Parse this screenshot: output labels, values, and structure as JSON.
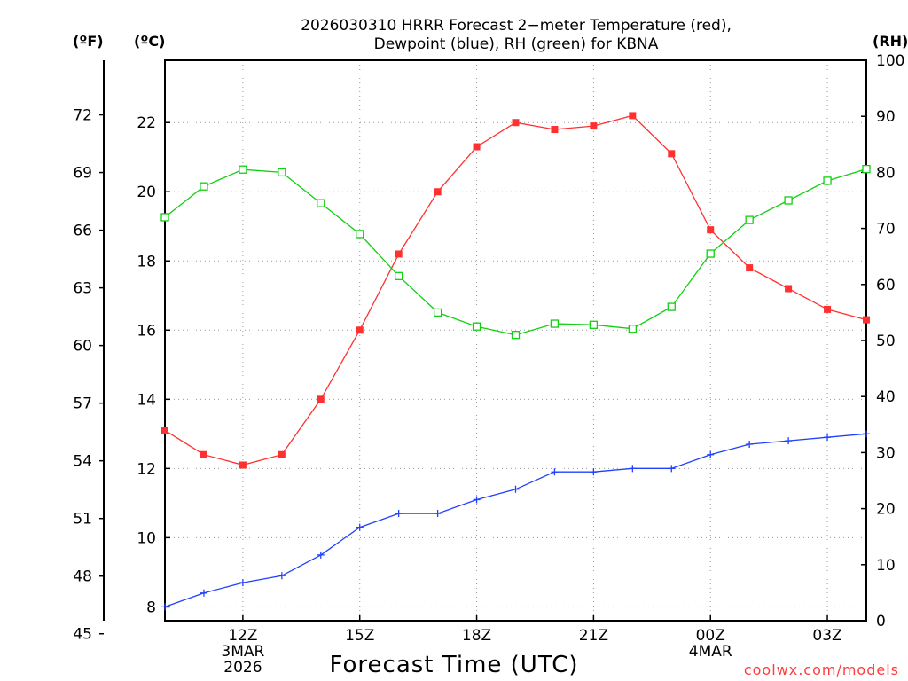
{
  "chart_data": {
    "type": "line",
    "title_line1": "2026030310 HRRR Forecast 2−meter Temperature (red),",
    "title_line2": "Dewpoint (blue), RH (green) for KBNA",
    "xlabel": "Forecast Time (UTC)",
    "unit_f": "(ºF)",
    "unit_c": "(ºC)",
    "unit_rh": "(RH)",
    "credit": "coolwx.com/models",
    "credit_color": "#ff3c3c",
    "x_hours": [
      10,
      11,
      12,
      13,
      14,
      15,
      16,
      17,
      18,
      19,
      20,
      21,
      22,
      23,
      24,
      25,
      26,
      27,
      28
    ],
    "xlim": [
      10,
      28
    ],
    "x_ticks": [
      {
        "hour": 12,
        "lines": [
          "12Z",
          "3MAR",
          "2026"
        ]
      },
      {
        "hour": 15,
        "lines": [
          "15Z"
        ]
      },
      {
        "hour": 18,
        "lines": [
          "18Z"
        ]
      },
      {
        "hour": 21,
        "lines": [
          "21Z"
        ]
      },
      {
        "hour": 24,
        "lines": [
          "00Z",
          "4MAR"
        ]
      },
      {
        "hour": 27,
        "lines": [
          "03Z"
        ]
      }
    ],
    "c_axis": {
      "lim": [
        7.6,
        23.8
      ],
      "ticks": [
        "8",
        "10",
        "12",
        "14",
        "16",
        "18",
        "20",
        "22"
      ]
    },
    "f_axis": {
      "ticks": [
        "45",
        "48",
        "51",
        "54",
        "57",
        "60",
        "63",
        "66",
        "69",
        "72"
      ]
    },
    "rh_axis": {
      "lim": [
        0,
        100
      ],
      "ticks": [
        "0",
        "10",
        "20",
        "30",
        "40",
        "50",
        "60",
        "70",
        "80",
        "90",
        "100"
      ]
    },
    "series": [
      {
        "name": "Temperature",
        "axis": "C",
        "color": "#ff3030",
        "marker": "filled-square",
        "values": [
          13.1,
          12.4,
          12.1,
          12.4,
          14.0,
          16.0,
          18.2,
          20.0,
          21.3,
          22.0,
          21.8,
          21.9,
          22.2,
          21.1,
          18.9,
          17.8,
          17.2,
          16.6,
          16.3
        ]
      },
      {
        "name": "Dewpoint",
        "axis": "C",
        "color": "#2040ff",
        "marker": "plus",
        "values": [
          8.0,
          8.4,
          8.7,
          8.9,
          9.5,
          10.3,
          10.7,
          10.7,
          11.1,
          11.4,
          11.9,
          11.9,
          12.0,
          12.0,
          12.4,
          12.7,
          12.8,
          12.9,
          13.0
        ]
      },
      {
        "name": "RH",
        "axis": "RH",
        "color": "#10d010",
        "marker": "open-square",
        "values": [
          72,
          77.5,
          80.5,
          80,
          74.5,
          69,
          61.5,
          55,
          52.5,
          51,
          53,
          52.8,
          52.1,
          56,
          65.5,
          71.5,
          75,
          78.5,
          80.6
        ]
      }
    ]
  }
}
